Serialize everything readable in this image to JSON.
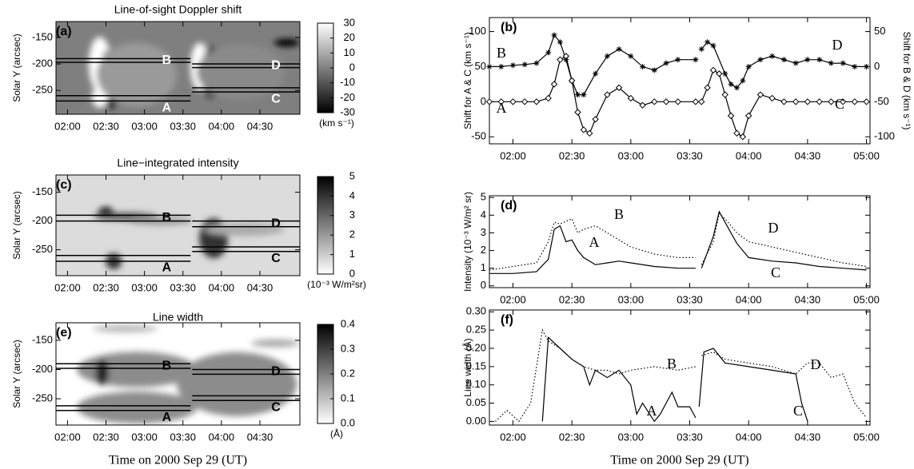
{
  "chart_data": [
    {
      "type": "image",
      "label": "(a)",
      "title": "Line-of-sight Doppler shift",
      "ylabel": "Solar Y (arcsec)",
      "xlim": [
        1.85,
        5.02
      ],
      "xticks": [
        {
          "value": 2,
          "label": "02:00"
        },
        {
          "value": 2.5,
          "label": "02:30"
        },
        {
          "value": 3,
          "label": "03:00"
        },
        {
          "value": 3.5,
          "label": "03:30"
        },
        {
          "value": 4,
          "label": "04:00"
        },
        {
          "value": 4.5,
          "label": "04:30"
        }
      ],
      "ylim": [
        -295,
        -120
      ],
      "yticks": [
        -150,
        -200,
        -250
      ],
      "label_color": "#ffffff",
      "colorbar": {
        "lim": [
          -30,
          30
        ],
        "ticks": [
          -30,
          -20,
          -10,
          0,
          10,
          20,
          30
        ],
        "unit": "(km s⁻¹)",
        "colors": [
          "#000000",
          "#ffffff"
        ]
      },
      "regions": [
        {
          "name": "B",
          "y": [
            -190,
            -197
          ],
          "x": [
            1.85,
            3.6
          ]
        },
        {
          "name": "A",
          "y": [
            -260,
            -270
          ],
          "x": [
            1.85,
            3.6
          ]
        },
        {
          "name": "D",
          "y": [
            -200,
            -207
          ],
          "x": [
            3.62,
            5.02
          ]
        },
        {
          "name": "C",
          "y": [
            -245,
            -253
          ],
          "x": [
            3.62,
            5.02
          ]
        }
      ]
    },
    {
      "type": "line",
      "label": "(b)",
      "ylabel": "Shift for A & C (km s⁻¹)",
      "y2label": "Shift for B & D (km s⁻¹)",
      "xlim": [
        1.8,
        5.03
      ],
      "xticks": [
        {
          "value": 2,
          "label": "02:00"
        },
        {
          "value": 2.5,
          "label": "02:30"
        },
        {
          "value": 3,
          "label": "03:00"
        },
        {
          "value": 3.5,
          "label": "03:30"
        },
        {
          "value": 4,
          "label": "04:00"
        },
        {
          "value": 4.5,
          "label": "04:30"
        },
        {
          "value": 5,
          "label": "05:00"
        }
      ],
      "ylim": [
        -60,
        120
      ],
      "yticks": [
        -50,
        0,
        50,
        100
      ],
      "y2lim": [
        -110,
        70
      ],
      "y2ticks": [
        -100,
        -50,
        0,
        50
      ],
      "series": [
        {
          "name": "B",
          "color": "#000000",
          "marker": "asterisk",
          "axis": "y2",
          "x": [
            1.8,
            1.9,
            2.0,
            2.1,
            2.2,
            2.3,
            2.35,
            2.4,
            2.45,
            2.5,
            2.55,
            2.6,
            2.7,
            2.8,
            2.9,
            3.0,
            3.1,
            3.2,
            3.3,
            3.4,
            3.55
          ],
          "values": [
            0,
            0,
            2,
            3,
            5,
            20,
            45,
            35,
            10,
            -20,
            -40,
            -40,
            -10,
            15,
            25,
            15,
            0,
            -5,
            5,
            10,
            10
          ]
        },
        {
          "name": "A",
          "color": "#000000",
          "marker": "diamond",
          "x": [
            1.8,
            1.9,
            2.0,
            2.1,
            2.2,
            2.3,
            2.35,
            2.4,
            2.45,
            2.5,
            2.55,
            2.6,
            2.65,
            2.7,
            2.8,
            2.9,
            3.0,
            3.1,
            3.2,
            3.3,
            3.4,
            3.55
          ],
          "values": [
            0,
            0,
            0,
            0,
            0,
            5,
            25,
            60,
            65,
            30,
            -15,
            -40,
            -45,
            -25,
            10,
            20,
            5,
            -5,
            0,
            0,
            0,
            0
          ]
        },
        {
          "name": "D",
          "color": "#000000",
          "marker": "asterisk",
          "axis": "y2",
          "x": [
            3.6,
            3.65,
            3.7,
            3.8,
            3.85,
            3.9,
            3.95,
            4.0,
            4.1,
            4.2,
            4.3,
            4.4,
            4.5,
            4.6,
            4.7,
            4.8,
            4.9,
            5.0
          ],
          "values": [
            25,
            35,
            30,
            -10,
            -25,
            -30,
            -20,
            0,
            10,
            15,
            10,
            5,
            10,
            10,
            5,
            5,
            0,
            0
          ]
        },
        {
          "name": "C",
          "color": "#000000",
          "marker": "diamond",
          "x": [
            3.6,
            3.65,
            3.7,
            3.75,
            3.8,
            3.85,
            3.9,
            3.95,
            4.0,
            4.1,
            4.2,
            4.3,
            4.4,
            4.5,
            4.6,
            4.7,
            4.8,
            4.9,
            5.0
          ],
          "values": [
            0,
            20,
            45,
            40,
            10,
            -20,
            -45,
            -50,
            -20,
            10,
            5,
            0,
            0,
            0,
            0,
            0,
            0,
            0,
            0
          ]
        }
      ]
    },
    {
      "type": "image",
      "label": "(c)",
      "title": "Line−integrated intensity",
      "ylabel": "Solar Y (arcsec)",
      "xlim": [
        1.85,
        5.02
      ],
      "xticks": [
        {
          "value": 2,
          "label": "02:00"
        },
        {
          "value": 2.5,
          "label": "02:30"
        },
        {
          "value": 3,
          "label": "03:00"
        },
        {
          "value": 3.5,
          "label": "03:30"
        },
        {
          "value": 4,
          "label": "04:00"
        },
        {
          "value": 4.5,
          "label": "04:30"
        }
      ],
      "ylim": [
        -295,
        -120
      ],
      "yticks": [
        -150,
        -200,
        -250
      ],
      "label_color": "#000000",
      "colorbar": {
        "lim": [
          0,
          5
        ],
        "ticks": [
          0,
          1,
          2,
          3,
          4,
          5
        ],
        "unit": "(10⁻³ W/m²sr)",
        "colors": [
          "#ffffff",
          "#000000"
        ]
      },
      "regions": [
        {
          "name": "B",
          "y": [
            -190,
            -200
          ],
          "x": [
            1.85,
            3.6
          ]
        },
        {
          "name": "A",
          "y": [
            -260,
            -270
          ],
          "x": [
            1.85,
            3.6
          ]
        },
        {
          "name": "D",
          "y": [
            -200,
            -210
          ],
          "x": [
            3.62,
            5.02
          ]
        },
        {
          "name": "C",
          "y": [
            -245,
            -253
          ],
          "x": [
            3.62,
            5.02
          ]
        }
      ]
    },
    {
      "type": "line",
      "label": "(d)",
      "ylabel": "Intensity (10⁻³ W/m² sr)",
      "xlim": [
        1.8,
        5.03
      ],
      "xticks": [
        {
          "value": 2,
          "label": "02:00"
        },
        {
          "value": 2.5,
          "label": "02:30"
        },
        {
          "value": 3,
          "label": "03:00"
        },
        {
          "value": 3.5,
          "label": "03:30"
        },
        {
          "value": 4,
          "label": "04:00"
        },
        {
          "value": 4.5,
          "label": "04:30"
        },
        {
          "value": 5,
          "label": "05:00"
        }
      ],
      "ylim": [
        -0.1,
        5.1
      ],
      "yticks": [
        0,
        1,
        2,
        3,
        4,
        5
      ],
      "series": [
        {
          "name": "B",
          "color": "#000000",
          "dash": "dotted",
          "x": [
            1.8,
            2.0,
            2.2,
            2.3,
            2.35,
            2.4,
            2.5,
            2.55,
            2.6,
            2.7,
            2.8,
            2.9,
            3.0,
            3.2,
            3.4,
            3.55
          ],
          "values": [
            0.9,
            1.1,
            1.3,
            2.5,
            3.6,
            3.5,
            3.8,
            3.0,
            3.2,
            3.4,
            3.0,
            2.6,
            2.2,
            1.8,
            1.6,
            1.6
          ]
        },
        {
          "name": "A",
          "color": "#000000",
          "x": [
            1.8,
            2.0,
            2.2,
            2.3,
            2.35,
            2.4,
            2.45,
            2.5,
            2.55,
            2.6,
            2.7,
            2.8,
            2.9,
            3.0,
            3.2,
            3.4,
            3.55
          ],
          "values": [
            0.7,
            0.7,
            0.8,
            1.5,
            3.2,
            3.4,
            2.5,
            2.6,
            2.0,
            1.6,
            1.2,
            1.3,
            1.4,
            1.3,
            1.1,
            1.0,
            1.0
          ]
        },
        {
          "name": "D",
          "color": "#000000",
          "dash": "dotted",
          "x": [
            3.6,
            3.7,
            3.75,
            3.8,
            3.9,
            4.0,
            4.2,
            4.4,
            4.6,
            4.8,
            5.0
          ],
          "values": [
            1.2,
            2.5,
            4.1,
            3.8,
            3.0,
            2.5,
            2.2,
            1.9,
            1.6,
            1.3,
            1.1
          ]
        },
        {
          "name": "C",
          "color": "#000000",
          "x": [
            3.6,
            3.7,
            3.75,
            3.8,
            3.9,
            4.0,
            4.2,
            4.4,
            4.6,
            4.8,
            5.0
          ],
          "values": [
            1.0,
            2.8,
            4.2,
            3.6,
            2.4,
            1.6,
            1.4,
            1.3,
            1.1,
            1.0,
            0.9
          ]
        }
      ]
    },
    {
      "type": "image",
      "label": "(e)",
      "title": "Line width",
      "ylabel": "Solar Y (arcsec)",
      "xlabel": "Time on 2000 Sep 29  (UT)",
      "xlim": [
        1.85,
        5.02
      ],
      "xticks": [
        {
          "value": 2,
          "label": "02:00"
        },
        {
          "value": 2.5,
          "label": "02:30"
        },
        {
          "value": 3,
          "label": "03:00"
        },
        {
          "value": 3.5,
          "label": "03:30"
        },
        {
          "value": 4,
          "label": "04:00"
        },
        {
          "value": 4.5,
          "label": "04:30"
        }
      ],
      "ylim": [
        -295,
        -120
      ],
      "yticks": [
        -150,
        -200,
        -250
      ],
      "label_color": "#000000",
      "colorbar": {
        "lim": [
          0,
          0.4
        ],
        "ticks": [
          {
            "value": 0,
            "label": "0.0"
          },
          {
            "value": 0.1,
            "label": "0.1"
          },
          {
            "value": 0.2,
            "label": "0.2"
          },
          {
            "value": 0.3,
            "label": "0.3"
          },
          {
            "value": 0.4,
            "label": "0.4"
          }
        ],
        "unit": "(Å)",
        "colors": [
          "#ffffff",
          "#000000"
        ]
      },
      "regions": [
        {
          "name": "B",
          "y": [
            -190,
            -198
          ],
          "x": [
            1.85,
            3.6
          ]
        },
        {
          "name": "A",
          "y": [
            -262,
            -270
          ],
          "x": [
            1.85,
            3.6
          ]
        },
        {
          "name": "D",
          "y": [
            -200,
            -208
          ],
          "x": [
            3.62,
            5.02
          ]
        },
        {
          "name": "C",
          "y": [
            -245,
            -253
          ],
          "x": [
            3.62,
            5.02
          ]
        }
      ]
    },
    {
      "type": "line",
      "label": "(f)",
      "ylabel": "Line width (Å)",
      "xlabel": "Time on 2000 Sep 29  (UT)",
      "xlim": [
        1.8,
        5.03
      ],
      "xticks": [
        {
          "value": 2,
          "label": "02:00"
        },
        {
          "value": 2.5,
          "label": "02:30"
        },
        {
          "value": 3,
          "label": "03:00"
        },
        {
          "value": 3.5,
          "label": "03:30"
        },
        {
          "value": 4,
          "label": "04:00"
        },
        {
          "value": 4.5,
          "label": "04:30"
        },
        {
          "value": 5,
          "label": "05:00"
        }
      ],
      "ylim": [
        -0.01,
        0.305
      ],
      "yticks": [
        {
          "value": 0,
          "label": "0.00"
        },
        {
          "value": 0.05,
          "label": "0.05"
        },
        {
          "value": 0.1,
          "label": "0.10"
        },
        {
          "value": 0.15,
          "label": "0.15"
        },
        {
          "value": 0.2,
          "label": "0.20"
        },
        {
          "value": 0.25,
          "label": "0.25"
        },
        {
          "value": 0.3,
          "label": "0.30"
        }
      ],
      "series": [
        {
          "name": "B",
          "color": "#000000",
          "dash": "dotted",
          "x": [
            1.85,
            1.95,
            2.05,
            2.15,
            2.25,
            2.3,
            2.4,
            2.5,
            2.6,
            2.7,
            2.8,
            2.9,
            3.0,
            3.2,
            3.4,
            3.55
          ],
          "values": [
            0,
            0.03,
            0,
            0.05,
            0.25,
            0.22,
            0.2,
            0.17,
            0.15,
            0.14,
            0.14,
            0.13,
            0.14,
            0.15,
            0.14,
            0.15
          ]
        },
        {
          "name": "A",
          "color": "#000000",
          "x": [
            2.25,
            2.3,
            2.4,
            2.5,
            2.6,
            2.65,
            2.7,
            2.8,
            2.9,
            3.0,
            3.05,
            3.1,
            3.2,
            3.25,
            3.35,
            3.4,
            3.5,
            3.55
          ],
          "values": [
            0,
            0.23,
            0.2,
            0.17,
            0.15,
            0.1,
            0.14,
            0.12,
            0.14,
            0.1,
            0.02,
            0.05,
            0,
            0.02,
            0.08,
            0.04,
            0.04,
            0.01
          ]
        },
        {
          "name": "D",
          "color": "#000000",
          "dash": "dotted",
          "x": [
            3.6,
            3.7,
            3.8,
            4.0,
            4.2,
            4.4,
            4.5,
            4.6,
            4.7,
            4.8,
            4.9,
            5.0
          ],
          "values": [
            0.18,
            0.19,
            0.17,
            0.16,
            0.15,
            0.13,
            0.16,
            0.16,
            0.12,
            0.13,
            0.05,
            0.01
          ]
        },
        {
          "name": "C",
          "color": "#000000",
          "x": [
            3.58,
            3.62,
            3.7,
            3.8,
            4.0,
            4.2,
            4.4,
            4.45,
            4.5
          ],
          "values": [
            0.04,
            0.19,
            0.2,
            0.16,
            0.15,
            0.14,
            0.13,
            0.05,
            0
          ]
        }
      ]
    }
  ]
}
